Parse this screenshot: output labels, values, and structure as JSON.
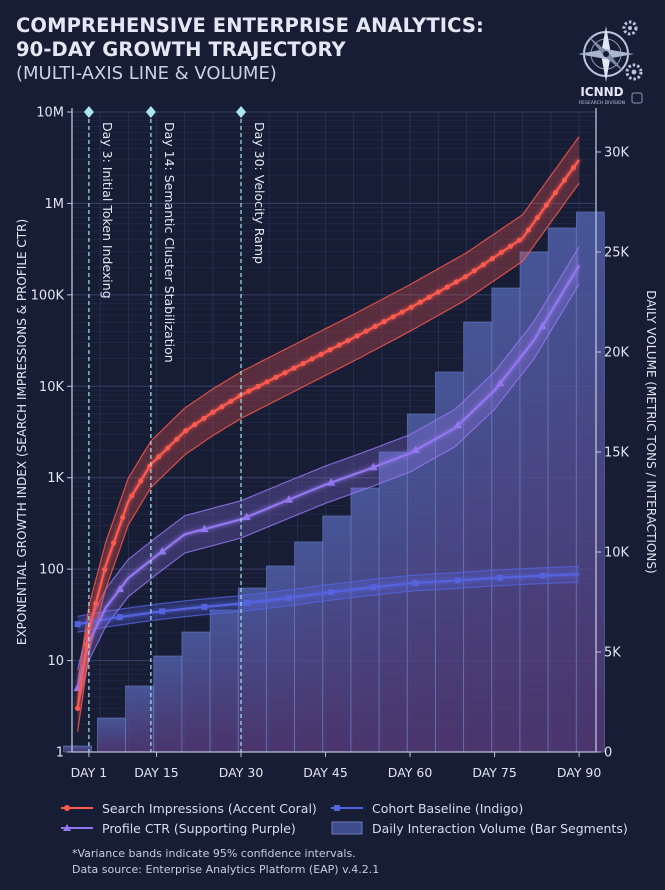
{
  "title_lines": [
    "COMPREHENSIVE ENTERPRISE ANALYTICS:",
    "90-DAY GROWTH TRAJECTORY"
  ],
  "subtitle": "(MULTI-AXIS LINE & VOLUME)",
  "logo": {
    "name": "ICNND",
    "tagline": "RESEARCH DIVISION",
    "icon": "compass-gear-icon"
  },
  "chart_data": {
    "type": "line",
    "xlabel": "",
    "x_ticks": [
      {
        "value": 3,
        "label": "DAY 1"
      },
      {
        "value": 15,
        "label": "DAY 15"
      },
      {
        "value": 30,
        "label": "DAY 30"
      },
      {
        "value": 45,
        "label": "DAY 45"
      },
      {
        "value": 60,
        "label": "DAY 60"
      },
      {
        "value": 75,
        "label": "DAY 75"
      },
      {
        "value": 90,
        "label": "DAY 90"
      }
    ],
    "xlim": [
      0,
      93
    ],
    "y_left": {
      "label": "EXPONENTIAL GROWTH INDEX (SEARCH IMPRESSIONS & PROFILE CTR)",
      "scale": "log",
      "lim": [
        1,
        10000000
      ],
      "ticks": [
        {
          "value": 1,
          "label": "1"
        },
        {
          "value": 10,
          "label": "10"
        },
        {
          "value": 100,
          "label": "100"
        },
        {
          "value": 1000,
          "label": "1K"
        },
        {
          "value": 10000,
          "label": "10K"
        },
        {
          "value": 100000,
          "label": "100K"
        },
        {
          "value": 1000000,
          "label": "1M"
        },
        {
          "value": 10000000,
          "label": "10M"
        }
      ]
    },
    "y_right": {
      "label": "DAILY VOLUME (METRIC TONS / INTERACTIONS)",
      "scale": "linear",
      "lim": [
        0,
        32000
      ],
      "ticks": [
        {
          "value": 0,
          "label": "0"
        },
        {
          "value": 5000,
          "label": "5K"
        },
        {
          "value": 10000,
          "label": "10K"
        },
        {
          "value": 15000,
          "label": "15K"
        },
        {
          "value": 20000,
          "label": "20K"
        },
        {
          "value": 25000,
          "label": "25K"
        },
        {
          "value": 30000,
          "label": "30K"
        }
      ]
    },
    "grid": true,
    "annotations": [
      {
        "x": 3,
        "label": "Day 3: Initial Token Indexing"
      },
      {
        "x": 14,
        "label": "Day 14: Semantic Cluster Stabilization"
      },
      {
        "x": 30,
        "label": "Day 30: Velocity Ramp"
      }
    ],
    "series": [
      {
        "name": "Search Impressions (Accent Coral)",
        "axis": "left",
        "kind": "line",
        "marker": "circle",
        "color": "#ff5a4e",
        "band": true,
        "band_factor": 1.8,
        "points": [
          [
            1,
            3
          ],
          [
            3,
            22
          ],
          [
            6,
            110
          ],
          [
            10,
            550
          ],
          [
            14,
            1400
          ],
          [
            20,
            3200
          ],
          [
            25,
            5200
          ],
          [
            30,
            8000
          ],
          [
            40,
            16500
          ],
          [
            50,
            34000
          ],
          [
            60,
            72000
          ],
          [
            70,
            160000
          ],
          [
            80,
            420000
          ],
          [
            90,
            3000000
          ]
        ]
      },
      {
        "name": "Profile CTR (Supporting Purple)",
        "axis": "left",
        "kind": "line",
        "marker": "triangle",
        "color": "#9377ee",
        "band": true,
        "band_factor": 1.6,
        "points": [
          [
            1,
            5
          ],
          [
            3,
            16
          ],
          [
            6,
            38
          ],
          [
            10,
            80
          ],
          [
            15,
            140
          ],
          [
            20,
            240
          ],
          [
            30,
            350
          ],
          [
            38,
            560
          ],
          [
            45,
            840
          ],
          [
            52,
            1200
          ],
          [
            60,
            1850
          ],
          [
            68,
            3500
          ],
          [
            75,
            9000
          ],
          [
            82,
            32000
          ],
          [
            90,
            210000
          ]
        ]
      },
      {
        "name": "Cohort Baseline (Indigo)",
        "axis": "left",
        "kind": "line",
        "marker": "square",
        "color": "#5563df",
        "band": true,
        "band_factor": 1.22,
        "points": [
          [
            1,
            25
          ],
          [
            7,
            29
          ],
          [
            15,
            34
          ],
          [
            22,
            38
          ],
          [
            30,
            42
          ],
          [
            38,
            48
          ],
          [
            45,
            55
          ],
          [
            52,
            62
          ],
          [
            60,
            70
          ],
          [
            68,
            75
          ],
          [
            75,
            80
          ],
          [
            82,
            84
          ],
          [
            90,
            88
          ]
        ]
      },
      {
        "name": "Daily Interaction Volume (Bar Segments)",
        "axis": "right",
        "kind": "bar",
        "color": "#3f4d8c",
        "x": [
          1,
          7,
          12,
          17,
          22,
          27,
          32,
          37,
          42,
          47,
          52,
          57,
          62,
          67,
          72,
          77,
          82,
          87,
          92
        ],
        "values": [
          300,
          1700,
          3300,
          4800,
          6000,
          7100,
          8200,
          9300,
          10500,
          11800,
          13200,
          15000,
          16900,
          19000,
          21500,
          23200,
          25000,
          26200,
          27000
        ]
      }
    ]
  },
  "notes": [
    "*Variance bands indicate 95% confidence intervals.",
    "Data source: Enterprise Analytics Platform (EAP) v.4.2.1"
  ],
  "colors": {
    "background": "#181d36",
    "grid": "#39406a",
    "axis": "#b9c4dc",
    "annotation": "#a9e6ee"
  }
}
